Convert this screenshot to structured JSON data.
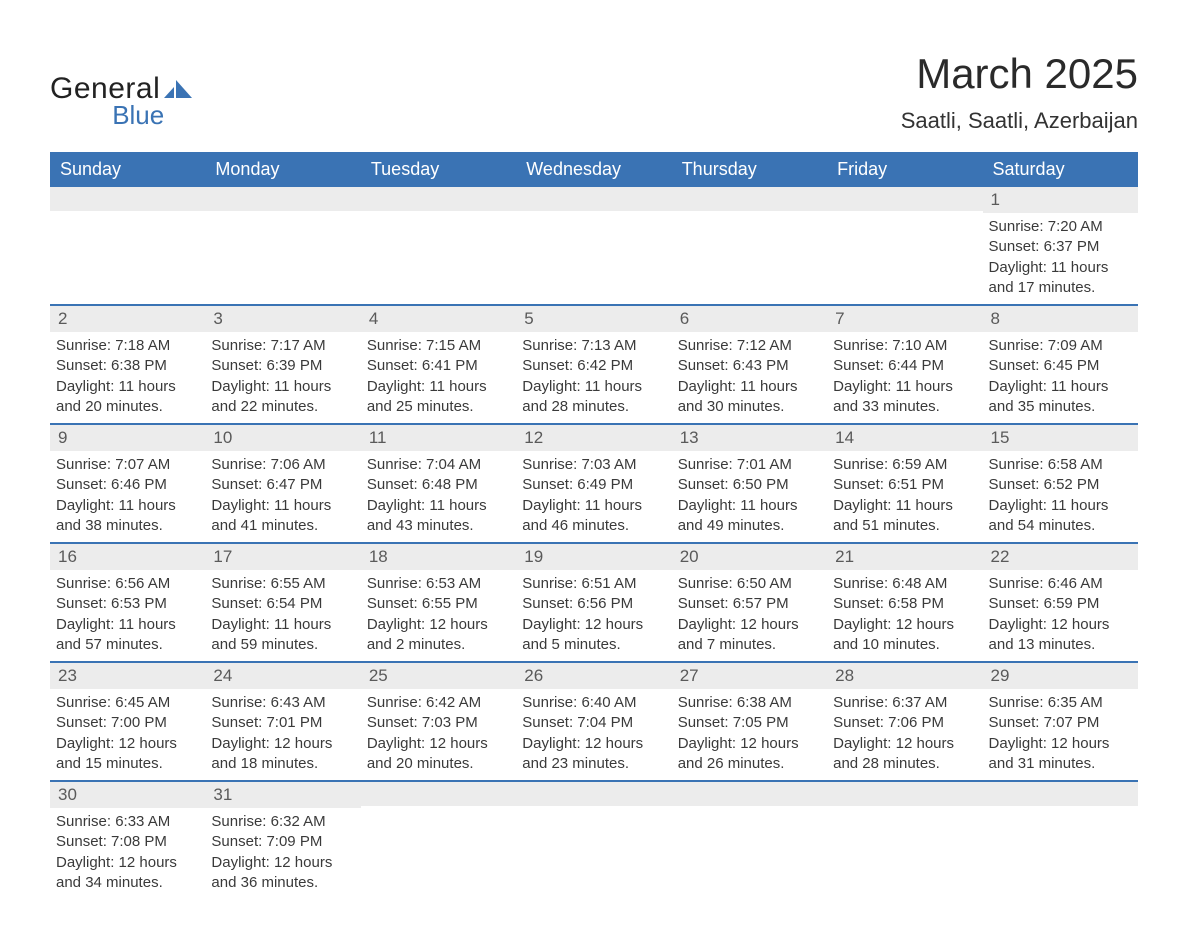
{
  "brand": {
    "word1": "General",
    "word2": "Blue"
  },
  "colors": {
    "header_bg": "#3a73b4",
    "header_text": "#ffffff",
    "stripe_bg": "#ececec",
    "border": "#3a73b4",
    "body_text": "#3a3a3a",
    "title_text": "#2a2a2a",
    "logo_accent": "#3a73b4",
    "page_bg": "#ffffff"
  },
  "typography": {
    "month_title_fontsize": 42,
    "location_fontsize": 22,
    "header_fontsize": 18,
    "daynum_fontsize": 17,
    "body_fontsize": 15
  },
  "title": "March 2025",
  "location": "Saatli, Saatli, Azerbaijan",
  "day_headers": [
    "Sunday",
    "Monday",
    "Tuesday",
    "Wednesday",
    "Thursday",
    "Friday",
    "Saturday"
  ],
  "labels": {
    "sunrise": "Sunrise:",
    "sunset": "Sunset:",
    "daylight": "Daylight:"
  },
  "weeks": [
    [
      null,
      null,
      null,
      null,
      null,
      null,
      {
        "n": "1",
        "sunrise": "7:20 AM",
        "sunset": "6:37 PM",
        "dl": "11 hours and 17 minutes."
      }
    ],
    [
      {
        "n": "2",
        "sunrise": "7:18 AM",
        "sunset": "6:38 PM",
        "dl": "11 hours and 20 minutes."
      },
      {
        "n": "3",
        "sunrise": "7:17 AM",
        "sunset": "6:39 PM",
        "dl": "11 hours and 22 minutes."
      },
      {
        "n": "4",
        "sunrise": "7:15 AM",
        "sunset": "6:41 PM",
        "dl": "11 hours and 25 minutes."
      },
      {
        "n": "5",
        "sunrise": "7:13 AM",
        "sunset": "6:42 PM",
        "dl": "11 hours and 28 minutes."
      },
      {
        "n": "6",
        "sunrise": "7:12 AM",
        "sunset": "6:43 PM",
        "dl": "11 hours and 30 minutes."
      },
      {
        "n": "7",
        "sunrise": "7:10 AM",
        "sunset": "6:44 PM",
        "dl": "11 hours and 33 minutes."
      },
      {
        "n": "8",
        "sunrise": "7:09 AM",
        "sunset": "6:45 PM",
        "dl": "11 hours and 35 minutes."
      }
    ],
    [
      {
        "n": "9",
        "sunrise": "7:07 AM",
        "sunset": "6:46 PM",
        "dl": "11 hours and 38 minutes."
      },
      {
        "n": "10",
        "sunrise": "7:06 AM",
        "sunset": "6:47 PM",
        "dl": "11 hours and 41 minutes."
      },
      {
        "n": "11",
        "sunrise": "7:04 AM",
        "sunset": "6:48 PM",
        "dl": "11 hours and 43 minutes."
      },
      {
        "n": "12",
        "sunrise": "7:03 AM",
        "sunset": "6:49 PM",
        "dl": "11 hours and 46 minutes."
      },
      {
        "n": "13",
        "sunrise": "7:01 AM",
        "sunset": "6:50 PM",
        "dl": "11 hours and 49 minutes."
      },
      {
        "n": "14",
        "sunrise": "6:59 AM",
        "sunset": "6:51 PM",
        "dl": "11 hours and 51 minutes."
      },
      {
        "n": "15",
        "sunrise": "6:58 AM",
        "sunset": "6:52 PM",
        "dl": "11 hours and 54 minutes."
      }
    ],
    [
      {
        "n": "16",
        "sunrise": "6:56 AM",
        "sunset": "6:53 PM",
        "dl": "11 hours and 57 minutes."
      },
      {
        "n": "17",
        "sunrise": "6:55 AM",
        "sunset": "6:54 PM",
        "dl": "11 hours and 59 minutes."
      },
      {
        "n": "18",
        "sunrise": "6:53 AM",
        "sunset": "6:55 PM",
        "dl": "12 hours and 2 minutes."
      },
      {
        "n": "19",
        "sunrise": "6:51 AM",
        "sunset": "6:56 PM",
        "dl": "12 hours and 5 minutes."
      },
      {
        "n": "20",
        "sunrise": "6:50 AM",
        "sunset": "6:57 PM",
        "dl": "12 hours and 7 minutes."
      },
      {
        "n": "21",
        "sunrise": "6:48 AM",
        "sunset": "6:58 PM",
        "dl": "12 hours and 10 minutes."
      },
      {
        "n": "22",
        "sunrise": "6:46 AM",
        "sunset": "6:59 PM",
        "dl": "12 hours and 13 minutes."
      }
    ],
    [
      {
        "n": "23",
        "sunrise": "6:45 AM",
        "sunset": "7:00 PM",
        "dl": "12 hours and 15 minutes."
      },
      {
        "n": "24",
        "sunrise": "6:43 AM",
        "sunset": "7:01 PM",
        "dl": "12 hours and 18 minutes."
      },
      {
        "n": "25",
        "sunrise": "6:42 AM",
        "sunset": "7:03 PM",
        "dl": "12 hours and 20 minutes."
      },
      {
        "n": "26",
        "sunrise": "6:40 AM",
        "sunset": "7:04 PM",
        "dl": "12 hours and 23 minutes."
      },
      {
        "n": "27",
        "sunrise": "6:38 AM",
        "sunset": "7:05 PM",
        "dl": "12 hours and 26 minutes."
      },
      {
        "n": "28",
        "sunrise": "6:37 AM",
        "sunset": "7:06 PM",
        "dl": "12 hours and 28 minutes."
      },
      {
        "n": "29",
        "sunrise": "6:35 AM",
        "sunset": "7:07 PM",
        "dl": "12 hours and 31 minutes."
      }
    ],
    [
      {
        "n": "30",
        "sunrise": "6:33 AM",
        "sunset": "7:08 PM",
        "dl": "12 hours and 34 minutes."
      },
      {
        "n": "31",
        "sunrise": "6:32 AM",
        "sunset": "7:09 PM",
        "dl": "12 hours and 36 minutes."
      },
      null,
      null,
      null,
      null,
      null
    ]
  ]
}
